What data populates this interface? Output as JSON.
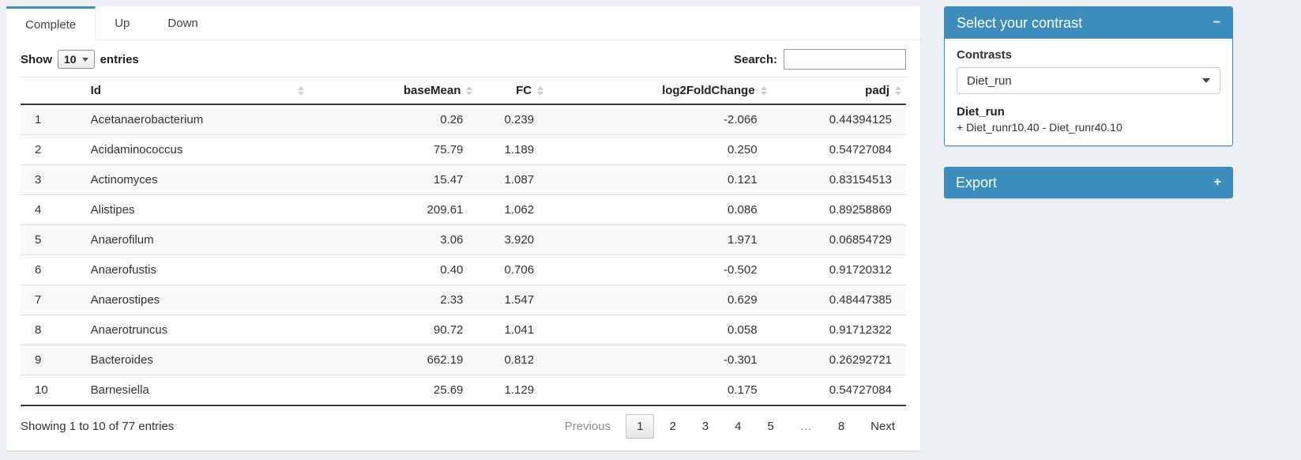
{
  "tabs": [
    {
      "label": "Complete",
      "active": true
    },
    {
      "label": "Up",
      "active": false
    },
    {
      "label": "Down",
      "active": false
    }
  ],
  "controls": {
    "show_label": "Show",
    "page_length": "10",
    "entries_label": "entries",
    "search_label": "Search:",
    "search_value": ""
  },
  "table": {
    "headers": [
      "",
      "Id",
      "baseMean",
      "FC",
      "log2FoldChange",
      "padj"
    ],
    "rows": [
      {
        "n": "1",
        "id": "Acetanaerobacterium",
        "baseMean": "0.26",
        "fc": "0.239",
        "log2fc": "-2.066",
        "padj": "0.44394125"
      },
      {
        "n": "2",
        "id": "Acidaminococcus",
        "baseMean": "75.79",
        "fc": "1.189",
        "log2fc": "0.250",
        "padj": "0.54727084"
      },
      {
        "n": "3",
        "id": "Actinomyces",
        "baseMean": "15.47",
        "fc": "1.087",
        "log2fc": "0.121",
        "padj": "0.83154513"
      },
      {
        "n": "4",
        "id": "Alistipes",
        "baseMean": "209.61",
        "fc": "1.062",
        "log2fc": "0.086",
        "padj": "0.89258869"
      },
      {
        "n": "5",
        "id": "Anaerofilum",
        "baseMean": "3.06",
        "fc": "3.920",
        "log2fc": "1.971",
        "padj": "0.06854729"
      },
      {
        "n": "6",
        "id": "Anaerofustis",
        "baseMean": "0.40",
        "fc": "0.706",
        "log2fc": "-0.502",
        "padj": "0.91720312"
      },
      {
        "n": "7",
        "id": "Anaerostipes",
        "baseMean": "2.33",
        "fc": "1.547",
        "log2fc": "0.629",
        "padj": "0.48447385"
      },
      {
        "n": "8",
        "id": "Anaerotruncus",
        "baseMean": "90.72",
        "fc": "1.041",
        "log2fc": "0.058",
        "padj": "0.91712322"
      },
      {
        "n": "9",
        "id": "Bacteroides",
        "baseMean": "662.19",
        "fc": "0.812",
        "log2fc": "-0.301",
        "padj": "0.26292721"
      },
      {
        "n": "10",
        "id": "Barnesiella",
        "baseMean": "25.69",
        "fc": "1.129",
        "log2fc": "0.175",
        "padj": "0.54727084"
      }
    ]
  },
  "footer": {
    "info": "Showing 1 to 10 of 77 entries",
    "pagination": {
      "previous": "Previous",
      "pages": [
        "1",
        "2",
        "3",
        "4",
        "5",
        "…",
        "8"
      ],
      "current": "1",
      "next": "Next"
    }
  },
  "contrast_box": {
    "title": "Select your contrast",
    "collapse_icon": "−",
    "contrasts_label": "Contrasts",
    "selected_contrast": "Diet_run",
    "detail_title": "Diet_run",
    "detail_formula": "+ Diet_runr10.40 - Diet_runr40.10"
  },
  "export_box": {
    "title": "Export",
    "expand_icon": "+"
  },
  "colors": {
    "primary": "#3c8dbc",
    "page_background": "#ecf0f5",
    "stripe": "#f9f9f9"
  }
}
